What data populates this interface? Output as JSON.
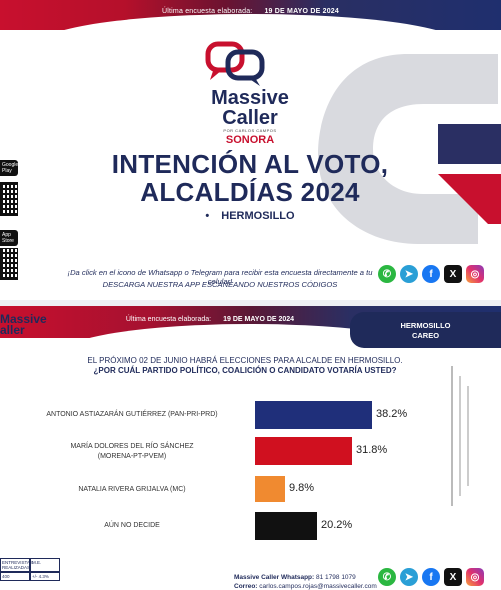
{
  "top": {
    "banner_label": "Última encuesta elaborada:",
    "banner_date": "19 DE MAYO DE 2024",
    "brand_line1": "Massive",
    "brand_line2": "Caller",
    "brand_tagline": "POR CARLOS CAMPOS",
    "state": "SONORA",
    "title_line1": "INTENCIÓN AL VOTO,",
    "title_line2": "ALCALDÍAS 2024",
    "city_bullet": "•",
    "city": "HERMOSILLO",
    "store_google": "Google Play",
    "store_apple": "App Store",
    "cta_line1": "¡Da click en el icono de Whatsapp o Telegram para recibir esta encuesta directamente a tu celular!",
    "cta_line2": "DESCARGA NUESTRA APP ESCANEANDO NUESTROS CÓDIGOS"
  },
  "social_icons": [
    "whatsapp-icon",
    "telegram-icon",
    "facebook-icon",
    "x-icon",
    "instagram-icon"
  ],
  "bottom": {
    "banner_label": "Última encuesta elaborada:",
    "banner_date": "19 DE MAYO DE 2024",
    "logo_line1": "Massive",
    "logo_line2": "aller",
    "tag_line1": "HERMOSILLO",
    "tag_line2": "CAREO",
    "question_line1": "EL PRÓXIMO 02 DE JUNIO HABRÁ ELECCIONES PARA ALCALDE EN HERMOSILLO.",
    "question_line2": "¿POR CUÁL PARTIDO POLÍTICO, COALICIÓN O CANDIDATO VOTARÍA USTED?",
    "whatsapp_label": "Massive Caller Whatsapp:",
    "whatsapp_number": "81 1798 1079",
    "email_label": "Correo:",
    "email": "carlos.campos.rojas@massivecaller.com",
    "mini_table_h1": "ENTREVISTAS REALIZADAS",
    "mini_table_h2": "M.E.",
    "mini_table_v1": "400",
    "mini_table_v2": "+/- 4.3%"
  },
  "chart_data": {
    "type": "bar",
    "orientation": "horizontal",
    "categories": [
      "ANTONIO ASTIAZARÁN GUTIÉRREZ (PAN-PRI-PRD)",
      "MARÍA DOLORES DEL RÍO SÁNCHEZ (MORENA-PT-PVEM)",
      "NATALIA RIVERA GRIJALVA (MC)",
      "AÚN NO DECIDE"
    ],
    "values": [
      38.2,
      31.8,
      9.8,
      20.2
    ],
    "value_labels": [
      "38.2%",
      "31.8%",
      "9.8%",
      "20.2%"
    ],
    "colors": [
      "#1f2f7a",
      "#d0101f",
      "#f08a30",
      "#111111"
    ],
    "xlim": [
      0,
      40
    ]
  }
}
